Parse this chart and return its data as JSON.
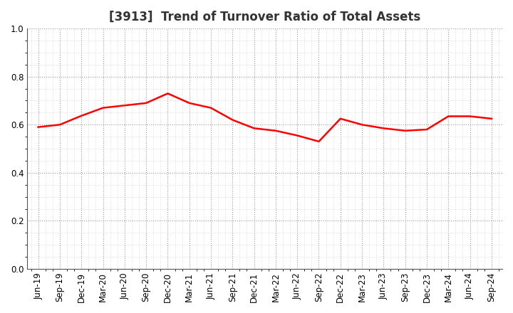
{
  "title": "[3913]  Trend of Turnover Ratio of Total Assets",
  "x_labels": [
    "Jun-19",
    "Sep-19",
    "Dec-19",
    "Mar-20",
    "Jun-20",
    "Sep-20",
    "Dec-20",
    "Mar-21",
    "Jun-21",
    "Sep-21",
    "Dec-21",
    "Mar-22",
    "Jun-22",
    "Sep-22",
    "Dec-22",
    "Mar-23",
    "Jun-23",
    "Sep-23",
    "Dec-23",
    "Mar-24",
    "Jun-24",
    "Sep-24"
  ],
  "values": [
    0.59,
    0.6,
    0.637,
    0.67,
    0.68,
    0.69,
    0.73,
    0.69,
    0.67,
    0.62,
    0.585,
    0.575,
    0.555,
    0.53,
    0.625,
    0.6,
    0.585,
    0.575,
    0.58,
    0.635,
    0.635,
    0.625
  ],
  "line_color": "#FF0000",
  "line_width": 1.8,
  "ylim": [
    0.0,
    1.0
  ],
  "yticks": [
    0.0,
    0.2,
    0.4,
    0.6,
    0.8,
    1.0
  ],
  "background_color": "#ffffff",
  "grid_major_color": "#999999",
  "grid_minor_color": "#cccccc",
  "title_fontsize": 12,
  "tick_fontsize": 8.5,
  "title_color": "#333333"
}
